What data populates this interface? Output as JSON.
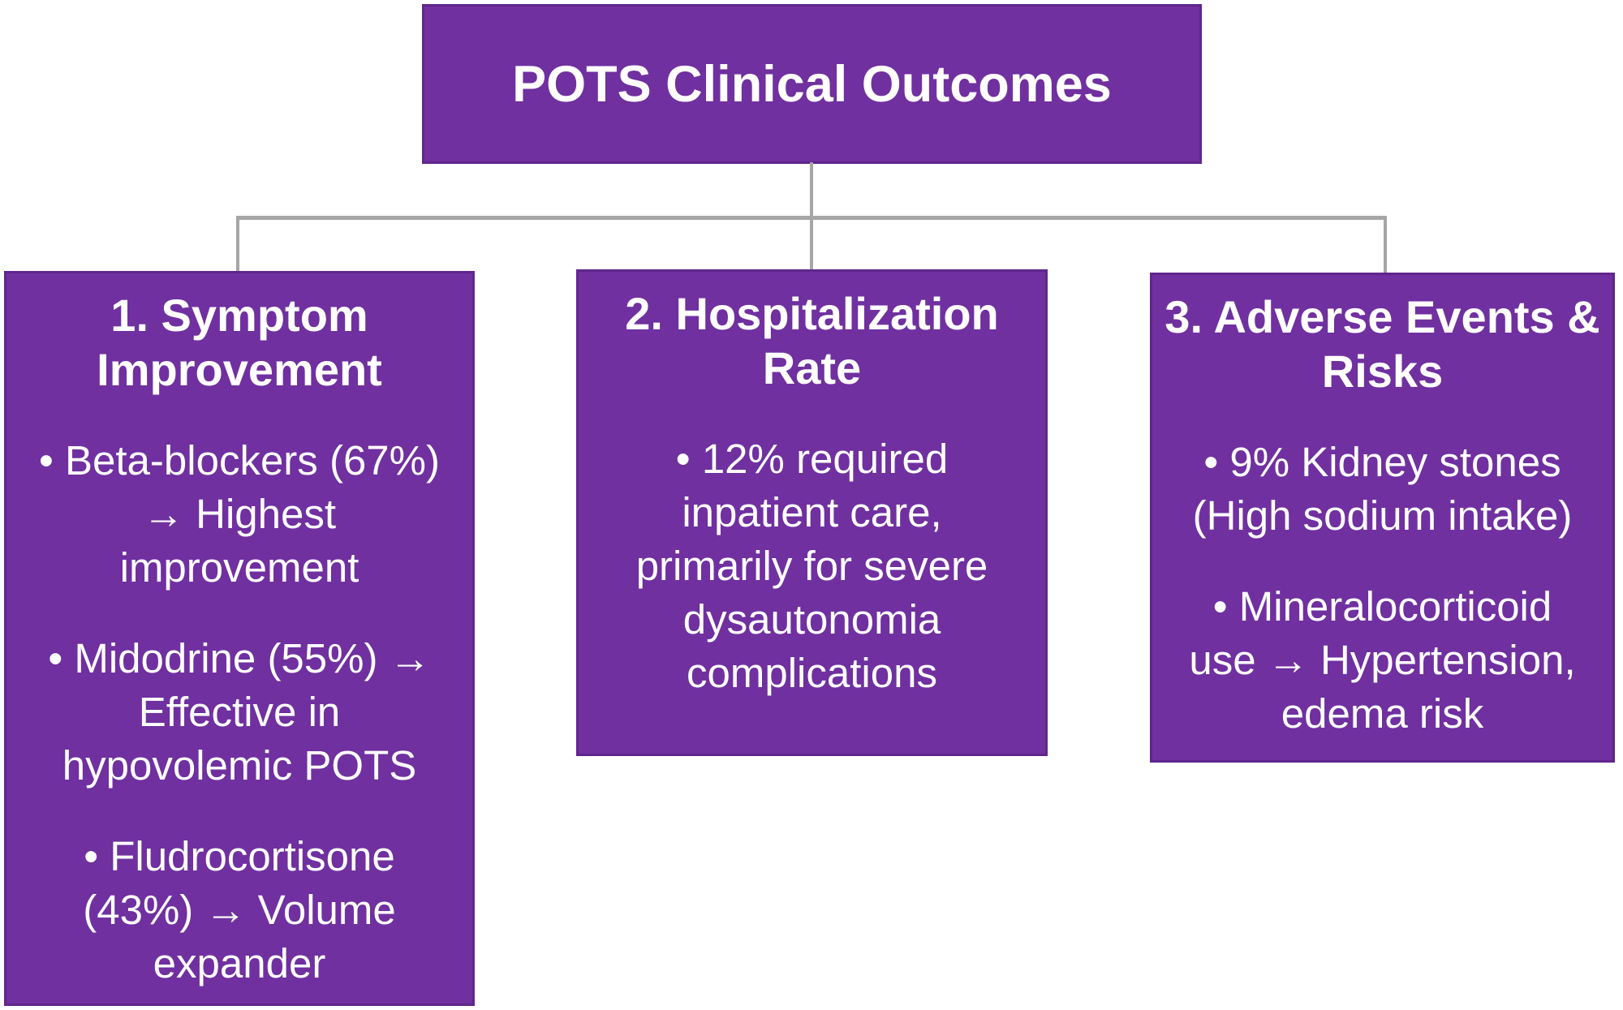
{
  "diagram": {
    "colors": {
      "background": "#ffffff",
      "node_fill": "#7030a0",
      "node_border": "#60268c",
      "connector": "#a6a6a6",
      "text": "#ffffff"
    },
    "root": {
      "title": "POTS Clinical Outcomes"
    },
    "nodes": [
      {
        "id": "symptom-improvement",
        "title": "1. Symptom Improvement",
        "title_lines": [
          "1. Symptom",
          "Improvement"
        ],
        "bullets": [
          {
            "text": "Beta-blockers (67%) → Highest improvement",
            "lines": [
              "• Beta-blockers (67%)",
              "→ Highest",
              "improvement"
            ]
          },
          {
            "text": "Midodrine (55%) → Effective in hypovolemic POTS",
            "lines": [
              "• Midodrine (55%) →",
              "Effective in",
              "hypovolemic POTS"
            ]
          },
          {
            "text": "Fludrocortisone (43%) → Volume expander",
            "lines": [
              "• Fludrocortisone",
              "(43%) → Volume",
              "expander"
            ]
          }
        ]
      },
      {
        "id": "hospitalization-rate",
        "title": "2. Hospitalization Rate",
        "title_lines": [
          "2. Hospitalization",
          "Rate"
        ],
        "bullets": [
          {
            "text": "12% required inpatient care, primarily for severe dysautonomia complications",
            "lines": [
              "• 12% required",
              "inpatient care,",
              "primarily for severe",
              "dysautonomia",
              "complications"
            ]
          }
        ]
      },
      {
        "id": "adverse-events-risks",
        "title": "3. Adverse Events & Risks",
        "title_lines": [
          "3. Adverse Events &",
          "Risks"
        ],
        "bullets": [
          {
            "text": "9% Kidney stones (High sodium intake)",
            "lines": [
              "• 9% Kidney stones",
              "(High sodium intake)"
            ]
          },
          {
            "text": "Mineralocorticoid use → Hypertension, edema risk",
            "lines": [
              "• Mineralocorticoid",
              "use → Hypertension,",
              "edema risk"
            ]
          }
        ]
      }
    ]
  }
}
